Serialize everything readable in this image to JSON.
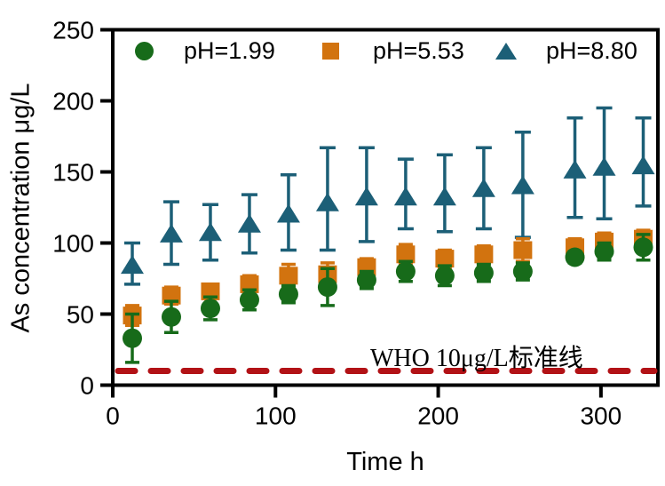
{
  "chart_data": {
    "type": "scatter",
    "title": "",
    "xlabel": "Time h",
    "ylabel": "As concentration μg/L",
    "xlim": [
      0,
      335
    ],
    "ylim": [
      0,
      250
    ],
    "xticks": [
      0,
      100,
      200,
      300
    ],
    "yticks": [
      0,
      50,
      100,
      150,
      200,
      250
    ],
    "grid": false,
    "legend_position": "top-inside",
    "axis_color": "#000000",
    "x": [
      12,
      36,
      60,
      84,
      108,
      132,
      156,
      180,
      204,
      228,
      252,
      284,
      302,
      326
    ],
    "series": [
      {
        "name": "pH=1.99",
        "marker": "circle",
        "color": "#176b1a",
        "values": [
          33,
          48,
          54,
          60,
          64,
          69,
          74,
          80,
          77,
          79,
          80,
          90,
          94,
          97
        ],
        "err": [
          17,
          11,
          8,
          7,
          6,
          13,
          6,
          7,
          7,
          6,
          6,
          4,
          6,
          9
        ]
      },
      {
        "name": "pH=5.53",
        "marker": "square",
        "color": "#d2730f",
        "values": [
          49,
          63,
          66,
          71,
          77,
          78,
          83,
          92,
          89,
          92,
          95,
          97,
          101,
          103
        ],
        "err": [
          7,
          6,
          5,
          6,
          8,
          8,
          6,
          7,
          6,
          6,
          8,
          6,
          6,
          6
        ]
      },
      {
        "name": "pH=8.80",
        "marker": "triangle",
        "color": "#1c5f77",
        "values": [
          84,
          106,
          107,
          113,
          120,
          128,
          132,
          132,
          132,
          138,
          140,
          151,
          153,
          154
        ],
        "err_up": [
          16,
          23,
          20,
          21,
          28,
          39,
          35,
          27,
          30,
          29,
          38,
          37,
          42,
          34
        ],
        "err_down": [
          13,
          21,
          19,
          20,
          25,
          33,
          31,
          22,
          24,
          28,
          36,
          33,
          36,
          28
        ]
      }
    ],
    "reference_line": {
      "value": 10,
      "label": "WHO 10μg/L标准线",
      "color": "#b21216",
      "style": "dashed"
    }
  }
}
